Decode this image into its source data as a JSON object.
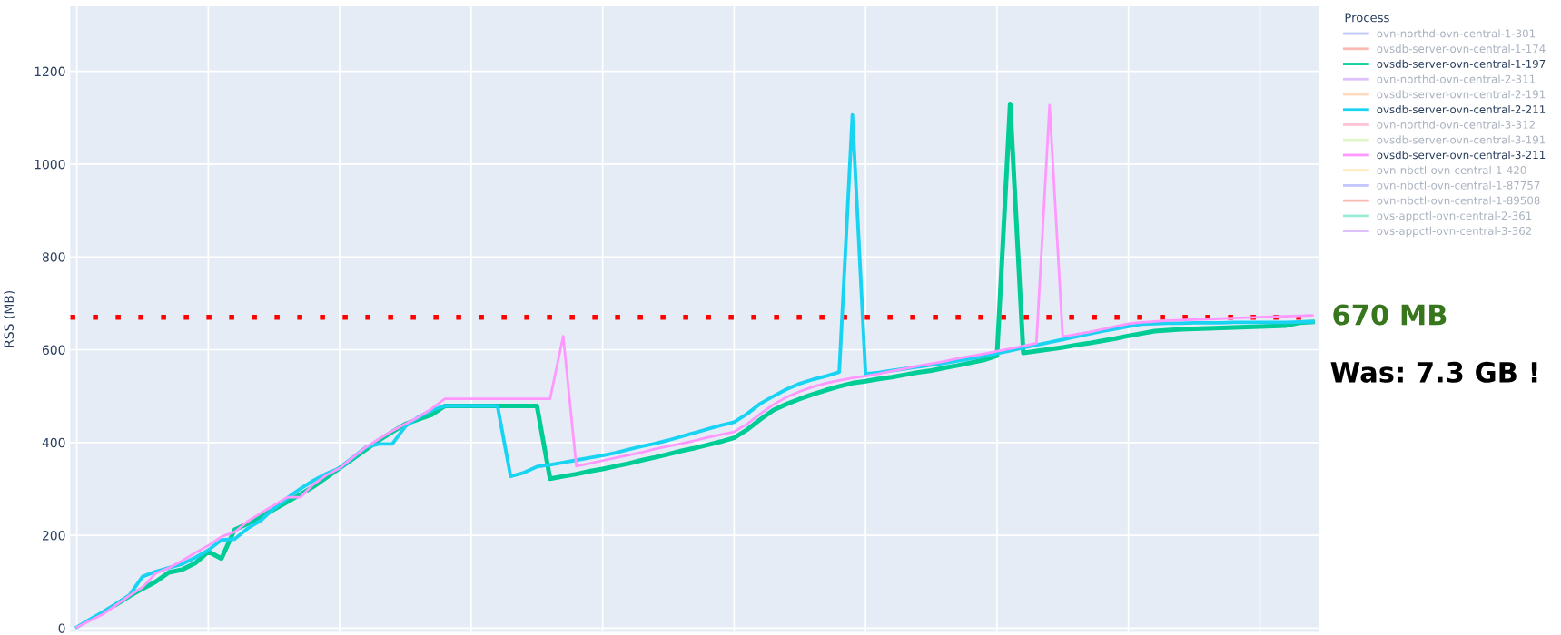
{
  "chart_data": {
    "type": "line",
    "ylabel": "RSS (MB)",
    "legend_title": "Process",
    "legend": "top right",
    "grid": true,
    "categories": [
      null,
      null,
      null,
      null,
      null,
      null,
      null,
      null,
      null,
      null,
      null,
      null,
      null,
      null,
      null,
      null,
      null,
      null,
      null,
      null,
      null,
      null,
      null,
      null,
      null,
      null,
      null,
      null,
      null,
      null,
      null,
      null,
      null,
      null,
      null,
      null,
      null,
      null,
      null,
      null,
      null,
      null,
      null,
      null,
      null,
      null,
      null,
      null,
      null,
      null,
      null,
      null,
      null,
      null,
      null,
      null,
      null,
      null,
      null,
      null,
      null,
      null,
      null,
      null,
      null,
      null,
      null,
      null,
      null,
      null,
      null,
      null,
      null,
      null,
      null,
      null,
      null,
      null,
      null,
      null,
      null,
      null,
      null,
      null,
      null,
      null,
      null,
      null,
      null,
      null,
      null,
      null,
      null,
      null,
      null
    ],
    "ylim": [
      -8,
      1340
    ],
    "yticks": [
      0,
      200,
      400,
      600,
      800,
      1000,
      1200
    ],
    "ref_lines": [
      {
        "axis": "y",
        "value": 670,
        "label": "670 MB",
        "color": "#ff0000",
        "line_style": "dotted"
      }
    ],
    "annotations": [
      "Was: 7.3 GB !"
    ],
    "series": [
      {
        "name": "ovn-northd-ovn-central-1-301",
        "color": "#636efa",
        "values": [
          null,
          null,
          null,
          null,
          null,
          null,
          null,
          null,
          null,
          null,
          null,
          null,
          null,
          null,
          null,
          null,
          null,
          null,
          null,
          null,
          null,
          null,
          null,
          null,
          null,
          null,
          null,
          null,
          null,
          null,
          null,
          null,
          null,
          null,
          null,
          null,
          null,
          null,
          null,
          null,
          null,
          null,
          null,
          null,
          null,
          null,
          null,
          null,
          null,
          null,
          null,
          null,
          null,
          null,
          null,
          null,
          null,
          null,
          null,
          null,
          null,
          null,
          null,
          null,
          null,
          null,
          null,
          null,
          null,
          null,
          null,
          null,
          null,
          null,
          null,
          null,
          null,
          null,
          null,
          null,
          null,
          null,
          null,
          null,
          null,
          null,
          null,
          null,
          null,
          null,
          null,
          null,
          null,
          null,
          null
        ]
      },
      {
        "name": "ovsdb-server-ovn-central-1-174",
        "color": "#ef553b",
        "values": [
          null,
          null,
          null,
          null,
          null,
          null,
          null,
          null,
          null,
          null,
          null,
          null,
          null,
          null,
          null,
          null,
          null,
          null,
          null,
          null,
          null,
          null,
          null,
          null,
          null,
          null,
          null,
          null,
          null,
          null,
          null,
          null,
          null,
          null,
          null,
          null,
          null,
          null,
          null,
          null,
          null,
          null,
          null,
          null,
          null,
          null,
          null,
          null,
          null,
          null,
          null,
          null,
          null,
          null,
          null,
          null,
          null,
          null,
          null,
          null,
          null,
          null,
          null,
          null,
          null,
          null,
          null,
          null,
          null,
          null,
          null,
          null,
          null,
          null,
          null,
          null,
          null,
          null,
          null,
          null,
          null,
          null,
          null,
          null,
          null,
          null,
          null,
          null,
          null,
          null,
          null,
          null,
          null,
          null,
          null
        ]
      },
      {
        "name": "ovsdb-server-ovn-central-1-197",
        "color": "#00cc96",
        "values": [
          null,
          null,
          null,
          51,
          69,
          85,
          100,
          120,
          126,
          140,
          165,
          150,
          212,
          225,
          240,
          256,
          272,
          288,
          305,
          325,
          345,
          365,
          385,
          405,
          423,
          440,
          450,
          460,
          479,
          479,
          479,
          479,
          479,
          479,
          479,
          479,
          322,
          327,
          332,
          338,
          343,
          349,
          355,
          362,
          368,
          375,
          382,
          388,
          395,
          402,
          410,
          428,
          450,
          470,
          483,
          494,
          504,
          513,
          521,
          528,
          532,
          537,
          541,
          546,
          551,
          555,
          561,
          566,
          572,
          578,
          587,
          1130,
          593,
          597,
          601,
          605,
          610,
          614,
          619,
          624,
          630,
          635,
          640,
          642,
          644,
          645,
          646,
          647,
          648,
          649,
          650,
          651,
          652,
          658,
          660
        ]
      },
      {
        "name": "ovn-northd-ovn-central-2-311",
        "color": "#ab63fa",
        "values": [
          null,
          null,
          null,
          null,
          null,
          null,
          null,
          null,
          null,
          null,
          null,
          null,
          null,
          null,
          null,
          null,
          null,
          null,
          null,
          null,
          null,
          null,
          null,
          null,
          null,
          null,
          null,
          null,
          null,
          null,
          null,
          null,
          null,
          null,
          null,
          null,
          null,
          null,
          null,
          null,
          null,
          null,
          null,
          null,
          null,
          null,
          null,
          null,
          null,
          null,
          null,
          null,
          null,
          null,
          null,
          null,
          null,
          null,
          null,
          null,
          null,
          null,
          null,
          null,
          null,
          null,
          null,
          null,
          null,
          null,
          null,
          null,
          null,
          null,
          null,
          null,
          null,
          null,
          null,
          null,
          null,
          null,
          null,
          null,
          null,
          null,
          null,
          null,
          null,
          null,
          null,
          null,
          null,
          null,
          null
        ]
      },
      {
        "name": "ovsdb-server-ovn-central-2-191",
        "color": "#ffa15a",
        "values": [
          null,
          null,
          null,
          null,
          null,
          null,
          null,
          null,
          null,
          null,
          null,
          null,
          null,
          null,
          null,
          null,
          null,
          null,
          null,
          null,
          null,
          null,
          null,
          null,
          null,
          null,
          null,
          null,
          null,
          null,
          null,
          null,
          null,
          null,
          null,
          null,
          null,
          null,
          null,
          null,
          null,
          null,
          null,
          null,
          null,
          null,
          null,
          null,
          null,
          null,
          null,
          null,
          null,
          null,
          null,
          null,
          null,
          null,
          null,
          null,
          null,
          null,
          null,
          null,
          null,
          null,
          null,
          null,
          null,
          null,
          null,
          null,
          null,
          null,
          null,
          null,
          null,
          null,
          null,
          null,
          null,
          null,
          null,
          null,
          null,
          null,
          null,
          null,
          null,
          null,
          null,
          null,
          null,
          null,
          null
        ]
      },
      {
        "name": "ovsdb-server-ovn-central-2-211",
        "color": "#19d3f3",
        "values": [
          2,
          19,
          35,
          53,
          71,
          111,
          122,
          130,
          138,
          152,
          168,
          190,
          192,
          215,
          232,
          258,
          280,
          300,
          318,
          333,
          345,
          368,
          390,
          397,
          397,
          435,
          455,
          470,
          479,
          479,
          479,
          479,
          479,
          327,
          335,
          348,
          352,
          357,
          362,
          367,
          372,
          378,
          385,
          392,
          398,
          405,
          413,
          421,
          429,
          437,
          444,
          462,
          484,
          500,
          515,
          527,
          536,
          543,
          552,
          1106,
          548,
          551,
          555,
          559,
          563,
          567,
          571,
          576,
          581,
          586,
          592,
          598,
          604,
          610,
          616,
          622,
          628,
          634,
          640,
          645,
          650,
          655,
          656,
          657,
          657,
          658,
          658,
          658,
          659,
          659,
          659,
          659,
          659,
          660,
          660
        ]
      },
      {
        "name": "ovn-northd-ovn-central-3-312",
        "color": "#ff6692",
        "values": [
          null,
          null,
          null,
          null,
          null,
          null,
          null,
          null,
          null,
          null,
          null,
          null,
          null,
          null,
          null,
          null,
          null,
          null,
          null,
          null,
          null,
          null,
          null,
          null,
          null,
          null,
          null,
          null,
          null,
          null,
          null,
          null,
          null,
          null,
          null,
          null,
          null,
          null,
          null,
          null,
          null,
          null,
          null,
          null,
          null,
          null,
          null,
          null,
          null,
          null,
          null,
          null,
          null,
          null,
          null,
          null,
          null,
          null,
          null,
          null,
          null,
          null,
          null,
          null,
          null,
          null,
          null,
          null,
          null,
          null,
          null,
          null,
          null,
          null,
          null,
          null,
          null,
          null,
          null,
          null,
          null,
          null,
          null,
          null,
          null,
          null,
          null,
          null,
          null,
          null,
          null,
          null,
          null,
          null,
          null
        ]
      },
      {
        "name": "ovsdb-server-ovn-central-3-191",
        "color": "#b6e880",
        "values": [
          null,
          null,
          null,
          null,
          null,
          null,
          null,
          null,
          null,
          null,
          null,
          null,
          null,
          null,
          null,
          null,
          null,
          null,
          null,
          null,
          null,
          null,
          null,
          null,
          null,
          null,
          null,
          null,
          null,
          null,
          null,
          null,
          null,
          null,
          null,
          null,
          null,
          null,
          null,
          null,
          null,
          null,
          null,
          null,
          null,
          null,
          null,
          null,
          null,
          null,
          null,
          null,
          null,
          null,
          null,
          null,
          null,
          null,
          null,
          null,
          null,
          null,
          null,
          null,
          null,
          null,
          null,
          null,
          null,
          null,
          null,
          null,
          null,
          null,
          null,
          null,
          null,
          null,
          null,
          null,
          null,
          null,
          null,
          null,
          null,
          null,
          null,
          null,
          null,
          null,
          null,
          null,
          null,
          null,
          null
        ]
      },
      {
        "name": "ovsdb-server-ovn-central-3-211",
        "color": "#ff97ff",
        "values": [
          2,
          16,
          30,
          50,
          70,
          88,
          118,
          130,
          145,
          162,
          178,
          197,
          207,
          230,
          248,
          265,
          282,
          282,
          310,
          330,
          345,
          368,
          390,
          408,
          425,
          440,
          455,
          473,
          494,
          494,
          494,
          494,
          494,
          494,
          494,
          494,
          494,
          629,
          349,
          355,
          361,
          367,
          373,
          379,
          386,
          392,
          398,
          404,
          411,
          417,
          423,
          440,
          462,
          482,
          498,
          510,
          520,
          528,
          534,
          539,
          543,
          548,
          554,
          559,
          565,
          570,
          575,
          581,
          586,
          591,
          597,
          602,
          608,
          614,
          1127,
          628,
          633,
          638,
          644,
          650,
          656,
          659,
          661,
          663,
          664,
          665,
          666,
          667,
          668,
          669,
          670,
          671,
          672,
          673,
          674
        ]
      },
      {
        "name": "ovn-nbctl-ovn-central-1-420",
        "color": "#fecb52",
        "values": [
          null,
          null,
          null,
          null,
          null,
          null,
          null,
          null,
          null,
          null,
          null,
          null,
          null,
          null,
          null,
          null,
          null,
          null,
          null,
          null,
          null,
          null,
          null,
          null,
          null,
          null,
          null,
          null,
          null,
          null,
          null,
          null,
          null,
          null,
          null,
          null,
          null,
          null,
          null,
          null,
          null,
          null,
          null,
          null,
          null,
          null,
          null,
          null,
          null,
          null,
          null,
          null,
          null,
          null,
          null,
          null,
          null,
          null,
          null,
          null,
          null,
          null,
          null,
          null,
          null,
          null,
          null,
          null,
          null,
          null,
          null,
          null,
          null,
          null,
          null,
          null,
          null,
          null,
          null,
          null,
          null,
          null,
          null,
          null,
          null,
          null,
          null,
          null,
          null,
          null,
          null,
          null,
          null,
          null,
          null
        ]
      },
      {
        "name": "ovn-nbctl-ovn-central-1-87757",
        "color": "#636efa",
        "values": [
          null,
          null,
          null,
          null,
          null,
          null,
          null,
          null,
          null,
          null,
          null,
          null,
          null,
          null,
          null,
          null,
          null,
          null,
          null,
          null,
          null,
          null,
          null,
          null,
          null,
          null,
          null,
          null,
          null,
          null,
          null,
          null,
          null,
          null,
          null,
          null,
          null,
          null,
          null,
          null,
          null,
          null,
          null,
          null,
          null,
          null,
          null,
          null,
          null,
          null,
          null,
          null,
          null,
          null,
          null,
          null,
          null,
          null,
          null,
          null,
          null,
          null,
          null,
          null,
          null,
          null,
          null,
          null,
          null,
          null,
          null,
          null,
          null,
          null,
          null,
          null,
          null,
          null,
          null,
          null,
          null,
          null,
          null,
          null,
          null,
          null,
          null,
          null,
          null,
          null,
          null,
          null,
          null,
          null,
          null
        ]
      },
      {
        "name": "ovn-nbctl-ovn-central-1-89508",
        "color": "#ef553b",
        "values": [
          null,
          null,
          null,
          null,
          null,
          null,
          null,
          null,
          null,
          null,
          null,
          null,
          null,
          null,
          null,
          null,
          null,
          null,
          null,
          null,
          null,
          null,
          null,
          null,
          null,
          null,
          null,
          null,
          null,
          null,
          null,
          null,
          null,
          null,
          null,
          null,
          null,
          null,
          null,
          null,
          null,
          null,
          null,
          null,
          null,
          null,
          null,
          null,
          null,
          null,
          null,
          null,
          null,
          null,
          null,
          null,
          null,
          null,
          null,
          null,
          null,
          null,
          null,
          null,
          null,
          null,
          null,
          null,
          null,
          null,
          null,
          null,
          null,
          null,
          null,
          null,
          null,
          null,
          null,
          null,
          null,
          null,
          null,
          null,
          null,
          null,
          null,
          null,
          null,
          null,
          null,
          null,
          null,
          null,
          null
        ]
      },
      {
        "name": "ovs-appctl-ovn-central-2-361",
        "color": "#00cc96",
        "values": [
          null,
          null,
          null,
          null,
          null,
          null,
          null,
          null,
          null,
          null,
          null,
          null,
          null,
          null,
          null,
          null,
          null,
          null,
          null,
          null,
          null,
          null,
          null,
          null,
          null,
          null,
          null,
          null,
          null,
          null,
          null,
          null,
          null,
          null,
          null,
          null,
          null,
          null,
          null,
          null,
          null,
          null,
          null,
          null,
          null,
          null,
          null,
          null,
          null,
          null,
          null,
          null,
          null,
          null,
          null,
          null,
          null,
          null,
          null,
          null,
          null,
          null,
          null,
          null,
          null,
          null,
          null,
          null,
          null,
          null,
          null,
          null,
          null,
          null,
          null,
          null,
          null,
          null,
          null,
          null,
          null,
          null,
          null,
          null,
          null,
          null,
          null,
          null,
          null,
          null,
          null,
          null,
          null,
          null,
          null
        ]
      },
      {
        "name": "ovs-appctl-ovn-central-3-362",
        "color": "#ab63fa",
        "values": [
          null,
          null,
          null,
          null,
          null,
          null,
          null,
          null,
          null,
          null,
          null,
          null,
          null,
          null,
          null,
          null,
          null,
          null,
          null,
          null,
          null,
          null,
          null,
          null,
          null,
          null,
          null,
          null,
          null,
          null,
          null,
          null,
          null,
          null,
          null,
          null,
          null,
          null,
          null,
          null,
          null,
          null,
          null,
          null,
          null,
          null,
          null,
          null,
          null,
          null,
          null,
          null,
          null,
          null,
          null,
          null,
          null,
          null,
          null,
          null,
          null,
          null,
          null,
          null,
          null,
          null,
          null,
          null,
          null,
          null,
          null,
          null,
          null,
          null,
          null,
          null,
          null,
          null,
          null,
          null,
          null,
          null,
          null,
          null,
          null,
          null,
          null,
          null,
          null,
          null,
          null,
          null,
          null,
          null,
          null
        ]
      }
    ]
  }
}
